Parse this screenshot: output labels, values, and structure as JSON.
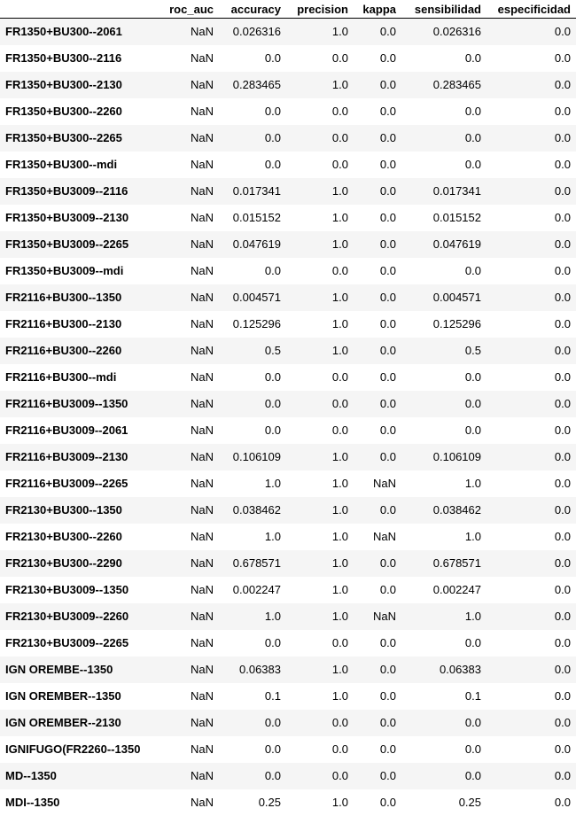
{
  "table": {
    "index_header": "",
    "columns": [
      "roc_auc",
      "accuracy",
      "precision",
      "kappa",
      "sensibilidad",
      "especificidad"
    ],
    "rows": [
      {
        "label": "FR1350+BU300--2061",
        "values": [
          "NaN",
          "0.026316",
          "1.0",
          "0.0",
          "0.026316",
          "0.0"
        ]
      },
      {
        "label": "FR1350+BU300--2116",
        "values": [
          "NaN",
          "0.0",
          "0.0",
          "0.0",
          "0.0",
          "0.0"
        ]
      },
      {
        "label": "FR1350+BU300--2130",
        "values": [
          "NaN",
          "0.283465",
          "1.0",
          "0.0",
          "0.283465",
          "0.0"
        ]
      },
      {
        "label": "FR1350+BU300--2260",
        "values": [
          "NaN",
          "0.0",
          "0.0",
          "0.0",
          "0.0",
          "0.0"
        ]
      },
      {
        "label": "FR1350+BU300--2265",
        "values": [
          "NaN",
          "0.0",
          "0.0",
          "0.0",
          "0.0",
          "0.0"
        ]
      },
      {
        "label": "FR1350+BU300--mdi",
        "values": [
          "NaN",
          "0.0",
          "0.0",
          "0.0",
          "0.0",
          "0.0"
        ]
      },
      {
        "label": "FR1350+BU3009--2116",
        "values": [
          "NaN",
          "0.017341",
          "1.0",
          "0.0",
          "0.017341",
          "0.0"
        ]
      },
      {
        "label": "FR1350+BU3009--2130",
        "values": [
          "NaN",
          "0.015152",
          "1.0",
          "0.0",
          "0.015152",
          "0.0"
        ]
      },
      {
        "label": "FR1350+BU3009--2265",
        "values": [
          "NaN",
          "0.047619",
          "1.0",
          "0.0",
          "0.047619",
          "0.0"
        ]
      },
      {
        "label": "FR1350+BU3009--mdi",
        "values": [
          "NaN",
          "0.0",
          "0.0",
          "0.0",
          "0.0",
          "0.0"
        ]
      },
      {
        "label": "FR2116+BU300--1350",
        "values": [
          "NaN",
          "0.004571",
          "1.0",
          "0.0",
          "0.004571",
          "0.0"
        ]
      },
      {
        "label": "FR2116+BU300--2130",
        "values": [
          "NaN",
          "0.125296",
          "1.0",
          "0.0",
          "0.125296",
          "0.0"
        ]
      },
      {
        "label": "FR2116+BU300--2260",
        "values": [
          "NaN",
          "0.5",
          "1.0",
          "0.0",
          "0.5",
          "0.0"
        ]
      },
      {
        "label": "FR2116+BU300--mdi",
        "values": [
          "NaN",
          "0.0",
          "0.0",
          "0.0",
          "0.0",
          "0.0"
        ]
      },
      {
        "label": "FR2116+BU3009--1350",
        "values": [
          "NaN",
          "0.0",
          "0.0",
          "0.0",
          "0.0",
          "0.0"
        ]
      },
      {
        "label": "FR2116+BU3009--2061",
        "values": [
          "NaN",
          "0.0",
          "0.0",
          "0.0",
          "0.0",
          "0.0"
        ]
      },
      {
        "label": "FR2116+BU3009--2130",
        "values": [
          "NaN",
          "0.106109",
          "1.0",
          "0.0",
          "0.106109",
          "0.0"
        ]
      },
      {
        "label": "FR2116+BU3009--2265",
        "values": [
          "NaN",
          "1.0",
          "1.0",
          "NaN",
          "1.0",
          "0.0"
        ]
      },
      {
        "label": "FR2130+BU300--1350",
        "values": [
          "NaN",
          "0.038462",
          "1.0",
          "0.0",
          "0.038462",
          "0.0"
        ]
      },
      {
        "label": "FR2130+BU300--2260",
        "values": [
          "NaN",
          "1.0",
          "1.0",
          "NaN",
          "1.0",
          "0.0"
        ]
      },
      {
        "label": "FR2130+BU300--2290",
        "values": [
          "NaN",
          "0.678571",
          "1.0",
          "0.0",
          "0.678571",
          "0.0"
        ]
      },
      {
        "label": "FR2130+BU3009--1350",
        "values": [
          "NaN",
          "0.002247",
          "1.0",
          "0.0",
          "0.002247",
          "0.0"
        ]
      },
      {
        "label": "FR2130+BU3009--2260",
        "values": [
          "NaN",
          "1.0",
          "1.0",
          "NaN",
          "1.0",
          "0.0"
        ]
      },
      {
        "label": "FR2130+BU3009--2265",
        "values": [
          "NaN",
          "0.0",
          "0.0",
          "0.0",
          "0.0",
          "0.0"
        ]
      },
      {
        "label": "IGN OREMBE--1350",
        "values": [
          "NaN",
          "0.06383",
          "1.0",
          "0.0",
          "0.06383",
          "0.0"
        ]
      },
      {
        "label": "IGN OREMBER--1350",
        "values": [
          "NaN",
          "0.1",
          "1.0",
          "0.0",
          "0.1",
          "0.0"
        ]
      },
      {
        "label": "IGN OREMBER--2130",
        "values": [
          "NaN",
          "0.0",
          "0.0",
          "0.0",
          "0.0",
          "0.0"
        ]
      },
      {
        "label": "IGNIFUGO(FR2260--1350",
        "values": [
          "NaN",
          "0.0",
          "0.0",
          "0.0",
          "0.0",
          "0.0"
        ]
      },
      {
        "label": "MD--1350",
        "values": [
          "NaN",
          "0.0",
          "0.0",
          "0.0",
          "0.0",
          "0.0"
        ]
      },
      {
        "label": "MDI--1350",
        "values": [
          "NaN",
          "0.25",
          "1.0",
          "0.0",
          "0.25",
          "0.0"
        ]
      }
    ]
  },
  "colors": {
    "row_stripe": "#f5f5f5",
    "row_plain": "#ffffff",
    "header_rule": "#000000"
  }
}
